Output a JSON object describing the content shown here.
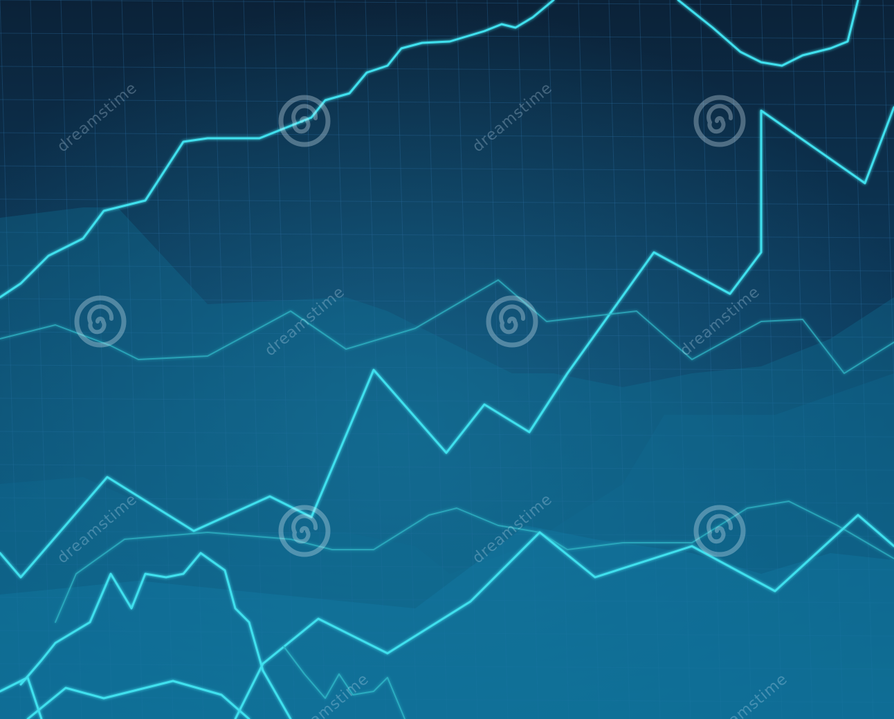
{
  "watermark": {
    "text": "dreamstime",
    "icon": "spiral-logo-icon"
  },
  "colors": {
    "background_top": "#0b2238",
    "background_bottom": "#0c5a80",
    "grid": "#2a6ea0",
    "line_bright": "#3fe0ee",
    "line_dim": "#2fb8c8",
    "area_fill": "#12769c"
  }
}
